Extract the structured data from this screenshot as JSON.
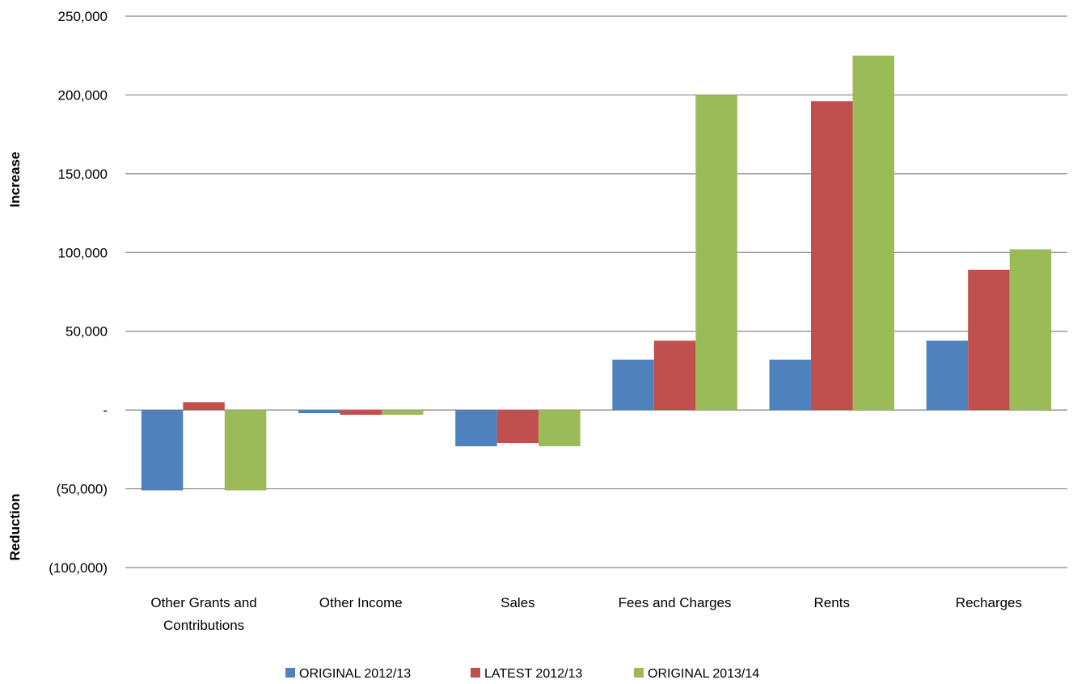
{
  "chart_data": {
    "type": "bar",
    "title": "",
    "xlabel": "",
    "ylabel_top": "Increase",
    "ylabel_bottom": "Reduction",
    "categories": [
      "Other Grants and Contributions",
      "Other Income",
      "Sales",
      "Fees and Charges",
      "Rents",
      "Recharges"
    ],
    "category_lines": [
      [
        "Other Grants and",
        "Contributions"
      ],
      [
        "Other Income"
      ],
      [
        "Sales"
      ],
      [
        "Fees and Charges"
      ],
      [
        "Rents"
      ],
      [
        "Recharges"
      ]
    ],
    "series": [
      {
        "name": "ORIGINAL 2012/13",
        "color": "#4F81BD",
        "values": [
          -51000,
          -2000,
          -23000,
          32000,
          32000,
          44000
        ]
      },
      {
        "name": "LATEST 2012/13",
        "color": "#C0504D",
        "values": [
          5000,
          -3000,
          -21000,
          44000,
          196000,
          89000
        ]
      },
      {
        "name": "ORIGINAL 2013/14",
        "color": "#9BBB59",
        "values": [
          -51000,
          -3000,
          -23000,
          200000,
          225000,
          102000
        ]
      }
    ],
    "ylim": [
      -100000,
      250000
    ],
    "yticks": [
      250000,
      200000,
      150000,
      100000,
      50000,
      0,
      -50000,
      -100000
    ],
    "ytick_labels": [
      "250,000",
      "200,000",
      "150,000",
      "100,000",
      "50,000",
      "-",
      "(50,000)",
      "(100,000)"
    ],
    "grid": true,
    "gridline_color": "#868686",
    "legend_position": "bottom"
  }
}
